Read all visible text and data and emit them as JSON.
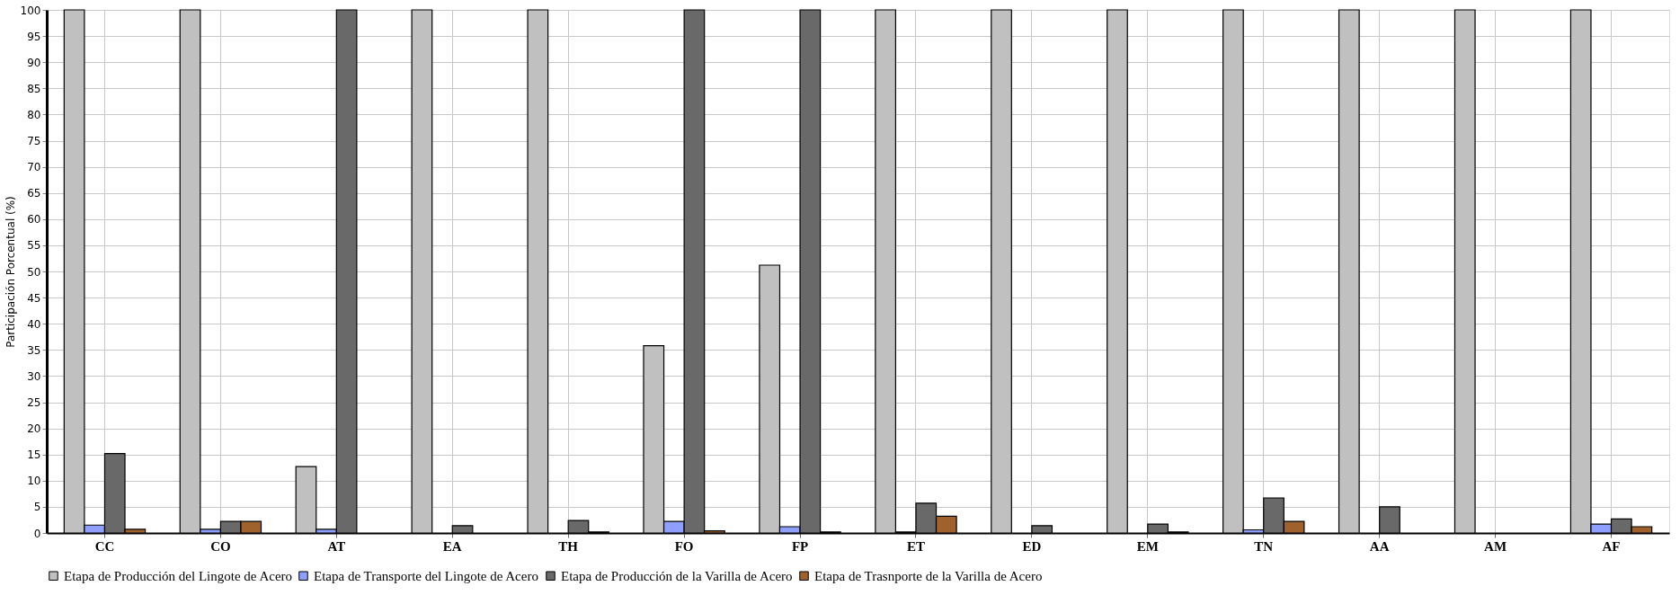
{
  "chart_data": {
    "type": "bar",
    "ylabel": "Participación Porcentual (%)",
    "categories": [
      "CC",
      "CO",
      "AT",
      "EA",
      "TH",
      "FO",
      "FP",
      "ET",
      "ED",
      "EM",
      "TN",
      "AA",
      "AM",
      "AF"
    ],
    "series": [
      {
        "name": "Etapa de Producción del Lingote de Acero",
        "color": "#c0c0c0",
        "values": [
          100,
          100,
          12.7,
          100,
          100,
          35.8,
          51.2,
          100,
          100,
          100,
          100,
          100,
          100,
          100
        ]
      },
      {
        "name": "Etapa de Transporte del Lingote de Acero",
        "color": "#8f9fff",
        "values": [
          1.5,
          0.7,
          0.7,
          0,
          0,
          2.2,
          1.2,
          0.2,
          0,
          0,
          0.6,
          0,
          0,
          1.7
        ]
      },
      {
        "name": "Etapa de Producción de la Varilla de Acero",
        "color": "#696969",
        "values": [
          15.2,
          2.2,
          100,
          1.4,
          2.4,
          100,
          100,
          5.7,
          1.4,
          1.7,
          6.7,
          5.0,
          0,
          2.7
        ]
      },
      {
        "name": "Etapa de Trasnporte de la Varilla de Acero",
        "color": "#a0622d",
        "values": [
          0.7,
          2.2,
          0,
          0,
          0.2,
          0.4,
          0.2,
          3.2,
          0,
          0.2,
          2.2,
          0,
          0,
          1.2
        ]
      }
    ],
    "ylim": [
      0,
      100
    ],
    "yticks": [
      0,
      5,
      10,
      15,
      20,
      25,
      30,
      35,
      40,
      45,
      50,
      55,
      60,
      65,
      70,
      75,
      80,
      85,
      90,
      95,
      100
    ],
    "grid": true,
    "legend": "bottom"
  }
}
